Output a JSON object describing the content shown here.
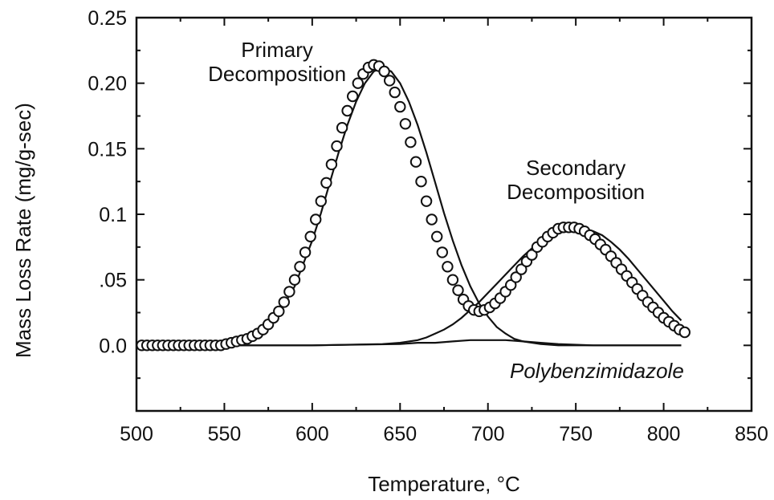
{
  "chart_data": {
    "type": "scatter",
    "title": "",
    "xlabel": "Temperature, °C",
    "ylabel": "Mass Loss Rate (mg/g-sec)",
    "xlim": [
      500,
      850
    ],
    "ylim": [
      -0.05,
      0.25
    ],
    "x_ticks": [
      500,
      550,
      600,
      650,
      700,
      750,
      800,
      850
    ],
    "x_tick_labels": [
      "500",
      "550",
      "600",
      "650",
      "700",
      "750",
      "800",
      "850"
    ],
    "y_ticks": [
      0.0,
      0.05,
      0.1,
      0.15,
      0.2,
      0.25
    ],
    "y_tick_labels": [
      "0.0",
      ".05",
      "0.1",
      "0.15",
      "0.20",
      "0.25"
    ],
    "grid": false,
    "annotations": [
      {
        "lines": [
          "Primary",
          "Decomposition"
        ],
        "x": 580,
        "y": 0.22
      },
      {
        "lines": [
          "Secondary",
          "Decomposition"
        ],
        "x": 750,
        "y": 0.13
      },
      {
        "lines": [
          "Polybenzimidazole"
        ],
        "x": 762,
        "y": -0.025,
        "style": "italic"
      }
    ],
    "series": [
      {
        "kind": "markers",
        "x": [
          503,
          506,
          509,
          512,
          515,
          518,
          521,
          524,
          527,
          530,
          533,
          536,
          539,
          542,
          545,
          548,
          551,
          554,
          557,
          560,
          563,
          566,
          569,
          572,
          575,
          578,
          581,
          584,
          587,
          590,
          593,
          596,
          599,
          602,
          605,
          608,
          611,
          614,
          617,
          620,
          623,
          626,
          629,
          632,
          635,
          638,
          641,
          644,
          647,
          650,
          653,
          656,
          659,
          662,
          665,
          668,
          671,
          674,
          677,
          680,
          683,
          686,
          689,
          692,
          695,
          698,
          701,
          704,
          707,
          710,
          713,
          716,
          719,
          722,
          725,
          728,
          731,
          734,
          737,
          740,
          743,
          746,
          749,
          752,
          755,
          758,
          761,
          764,
          767,
          770,
          773,
          776,
          779,
          782,
          785,
          788,
          791,
          794,
          797,
          800,
          803,
          806,
          809,
          812
        ],
        "y": [
          0.0,
          0.0,
          0.0,
          0.0,
          0.0,
          0.0,
          0.0,
          0.0,
          0.0,
          0.0,
          0.0,
          0.0,
          0.0,
          0.0,
          0.0,
          0.0,
          0.001,
          0.002,
          0.003,
          0.004,
          0.005,
          0.007,
          0.009,
          0.012,
          0.016,
          0.021,
          0.026,
          0.033,
          0.041,
          0.05,
          0.06,
          0.071,
          0.083,
          0.096,
          0.11,
          0.124,
          0.138,
          0.152,
          0.166,
          0.179,
          0.19,
          0.2,
          0.207,
          0.212,
          0.214,
          0.213,
          0.209,
          0.202,
          0.193,
          0.182,
          0.169,
          0.155,
          0.14,
          0.125,
          0.11,
          0.096,
          0.083,
          0.071,
          0.06,
          0.05,
          0.042,
          0.035,
          0.03,
          0.027,
          0.026,
          0.027,
          0.029,
          0.032,
          0.036,
          0.041,
          0.046,
          0.052,
          0.058,
          0.064,
          0.069,
          0.075,
          0.079,
          0.083,
          0.086,
          0.089,
          0.09,
          0.09,
          0.09,
          0.089,
          0.087,
          0.084,
          0.081,
          0.077,
          0.073,
          0.068,
          0.063,
          0.058,
          0.053,
          0.048,
          0.043,
          0.038,
          0.033,
          0.029,
          0.025,
          0.021,
          0.018,
          0.015,
          0.012,
          0.01
        ]
      },
      {
        "kind": "line",
        "x": [
          503,
          510,
          520,
          530,
          540,
          550,
          560,
          570,
          580,
          590,
          600,
          605,
          610,
          615,
          620,
          625,
          630,
          635,
          640,
          645,
          650,
          655,
          660,
          665,
          670,
          675,
          680,
          685,
          690,
          695,
          700,
          705,
          710,
          715,
          720,
          730,
          740,
          750,
          760,
          770,
          780,
          790,
          800,
          810
        ],
        "y": [
          0.0,
          0.0,
          0.0,
          0.0,
          0.0,
          0.001,
          0.004,
          0.01,
          0.022,
          0.045,
          0.08,
          0.101,
          0.124,
          0.147,
          0.168,
          0.186,
          0.2,
          0.209,
          0.212,
          0.209,
          0.2,
          0.186,
          0.168,
          0.147,
          0.124,
          0.101,
          0.08,
          0.061,
          0.045,
          0.032,
          0.022,
          0.014,
          0.009,
          0.005,
          0.003,
          0.001,
          0.0,
          0.0,
          0.0,
          0.0,
          0.0,
          0.0,
          0.0,
          0.0
        ]
      },
      {
        "kind": "line",
        "x": [
          503,
          550,
          600,
          640,
          650,
          660,
          665,
          670,
          675,
          680,
          685,
          690,
          695,
          700,
          705,
          710,
          715,
          720,
          725,
          730,
          735,
          740,
          745,
          750,
          755,
          760,
          765,
          770,
          775,
          780,
          785,
          790,
          795,
          800,
          805,
          810
        ],
        "y": [
          0.0,
          0.0,
          0.0,
          0.001,
          0.002,
          0.004,
          0.006,
          0.009,
          0.012,
          0.016,
          0.021,
          0.027,
          0.033,
          0.04,
          0.047,
          0.054,
          0.061,
          0.068,
          0.074,
          0.079,
          0.084,
          0.087,
          0.089,
          0.09,
          0.089,
          0.087,
          0.084,
          0.079,
          0.073,
          0.066,
          0.058,
          0.05,
          0.042,
          0.034,
          0.026,
          0.019
        ]
      },
      {
        "kind": "line",
        "x": [
          503,
          540,
          600,
          650,
          660,
          670,
          680,
          690,
          700,
          710,
          720,
          730,
          740,
          760,
          780,
          800,
          810
        ],
        "y": [
          0.0,
          0.0,
          0.0,
          0.001,
          0.002,
          0.002,
          0.003,
          0.004,
          0.004,
          0.004,
          0.003,
          0.002,
          0.001,
          0.0,
          0.0,
          0.0,
          0.0
        ]
      }
    ]
  }
}
